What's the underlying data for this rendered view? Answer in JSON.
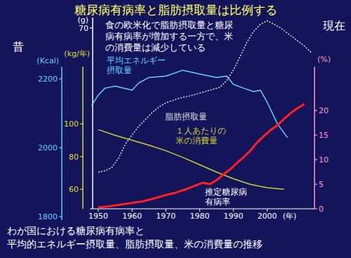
{
  "chart_data": {
    "type": "line",
    "title": "糖尿病有病率と脂肪摂取量は比例する",
    "annotation": "食の欧米化で脂肪摂取量と糖尿病有病率が増加する一方で、米の消費量は減少している",
    "caption": [
      "わが国における糖尿病有病率と",
      "平均的エネルギー摂取量、脂肪摂取量、米の消費量の推移"
    ],
    "left_label": "昔",
    "right_label": "現在",
    "xlim": [
      1947.5,
      2014
    ],
    "xticks": [
      1950,
      1960,
      1970,
      1980,
      1990,
      2000
    ],
    "xlabel": "(年)",
    "axes": [
      {
        "label": "(Kcal)",
        "ylim": [
          1790,
          2235
        ],
        "yticks": [
          1800,
          2000,
          2200
        ],
        "color": "#66ccff"
      },
      {
        "label": "(kg/年)",
        "ylim": [
          48,
          135
        ],
        "yticks": [
          60,
          80,
          100
        ],
        "color": "#dddd33"
      },
      {
        "label": "(g)",
        "ylim": [
          0,
          74
        ],
        "yticks": [
          70
        ],
        "color": "#ffffff"
      },
      {
        "label": "(%)",
        "ylim": [
          0,
          28.9
        ],
        "yticks": [
          0,
          5,
          10,
          15,
          20
        ],
        "color": "#ff99cc"
      }
    ],
    "series": [
      {
        "name": "平均エネルギー摂取量",
        "color": "#66ccff",
        "axis": 0,
        "line_style": "solid",
        "x": [
          1948,
          1950,
          1952,
          1955,
          1960,
          1962,
          1965,
          1970,
          1975,
          1980,
          1985,
          1988,
          1990,
          1993,
          1996,
          1998,
          2000,
          2003,
          2006
        ],
        "values": [
          2122,
          2153,
          2173,
          2179,
          2167,
          2188,
          2204,
          2208,
          2225,
          2214,
          2204,
          2208,
          2184,
          2173,
          2163,
          2167,
          2132,
          2070,
          2029
        ]
      },
      {
        "name": "１人あたりの米の消費量",
        "color": "#cccc33",
        "axis": 1,
        "line_style": "solid",
        "x": [
          1950,
          1955,
          1960,
          1965,
          1970,
          1975,
          1980,
          1985,
          1990,
          1995,
          2000,
          2005
        ],
        "values": [
          96.5,
          93,
          90,
          87,
          83.6,
          79.5,
          75,
          70.5,
          66.4,
          63,
          60.9,
          60
        ]
      },
      {
        "name": "脂肪摂取量",
        "color": "#dddddd",
        "axis": 2,
        "line_style": "dotted",
        "x": [
          1950,
          1952,
          1954,
          1956,
          1958,
          1960,
          1962,
          1964,
          1966,
          1968,
          1970,
          1974,
          1978,
          1982,
          1986,
          1988,
          1990,
          1992,
          1994,
          1996,
          1998,
          2000,
          2004,
          2008,
          2011,
          2013
        ],
        "values": [
          14.2,
          14.7,
          16,
          19.6,
          25,
          28.6,
          32,
          34.6,
          37.3,
          39.5,
          41,
          42.8,
          44,
          45.5,
          47,
          49.6,
          53.7,
          59,
          64.5,
          68.7,
          71.4,
          72.8,
          70,
          66,
          63,
          60.5
        ]
      },
      {
        "name": "推定糖尿病有病率",
        "color": "#ff2020",
        "axis": 3,
        "line_style": "solid",
        "x": [
          1950,
          1953,
          1956,
          1960,
          1963,
          1966,
          1970,
          1973,
          1976,
          1979,
          1981,
          1983,
          1985,
          1987,
          1989,
          1991,
          1993,
          1995,
          1997,
          1999,
          2001,
          2003,
          2005,
          2007,
          2009,
          2011
        ],
        "values": [
          0.3,
          0.5,
          0.8,
          1.2,
          1.5,
          2.0,
          2.8,
          3.3,
          4.0,
          4.8,
          5.3,
          5.0,
          5.8,
          7.0,
          8.0,
          9.3,
          10.5,
          11.8,
          13.5,
          14.8,
          16.0,
          17.0,
          18.3,
          19.5,
          20.5,
          21.3
        ]
      }
    ]
  }
}
